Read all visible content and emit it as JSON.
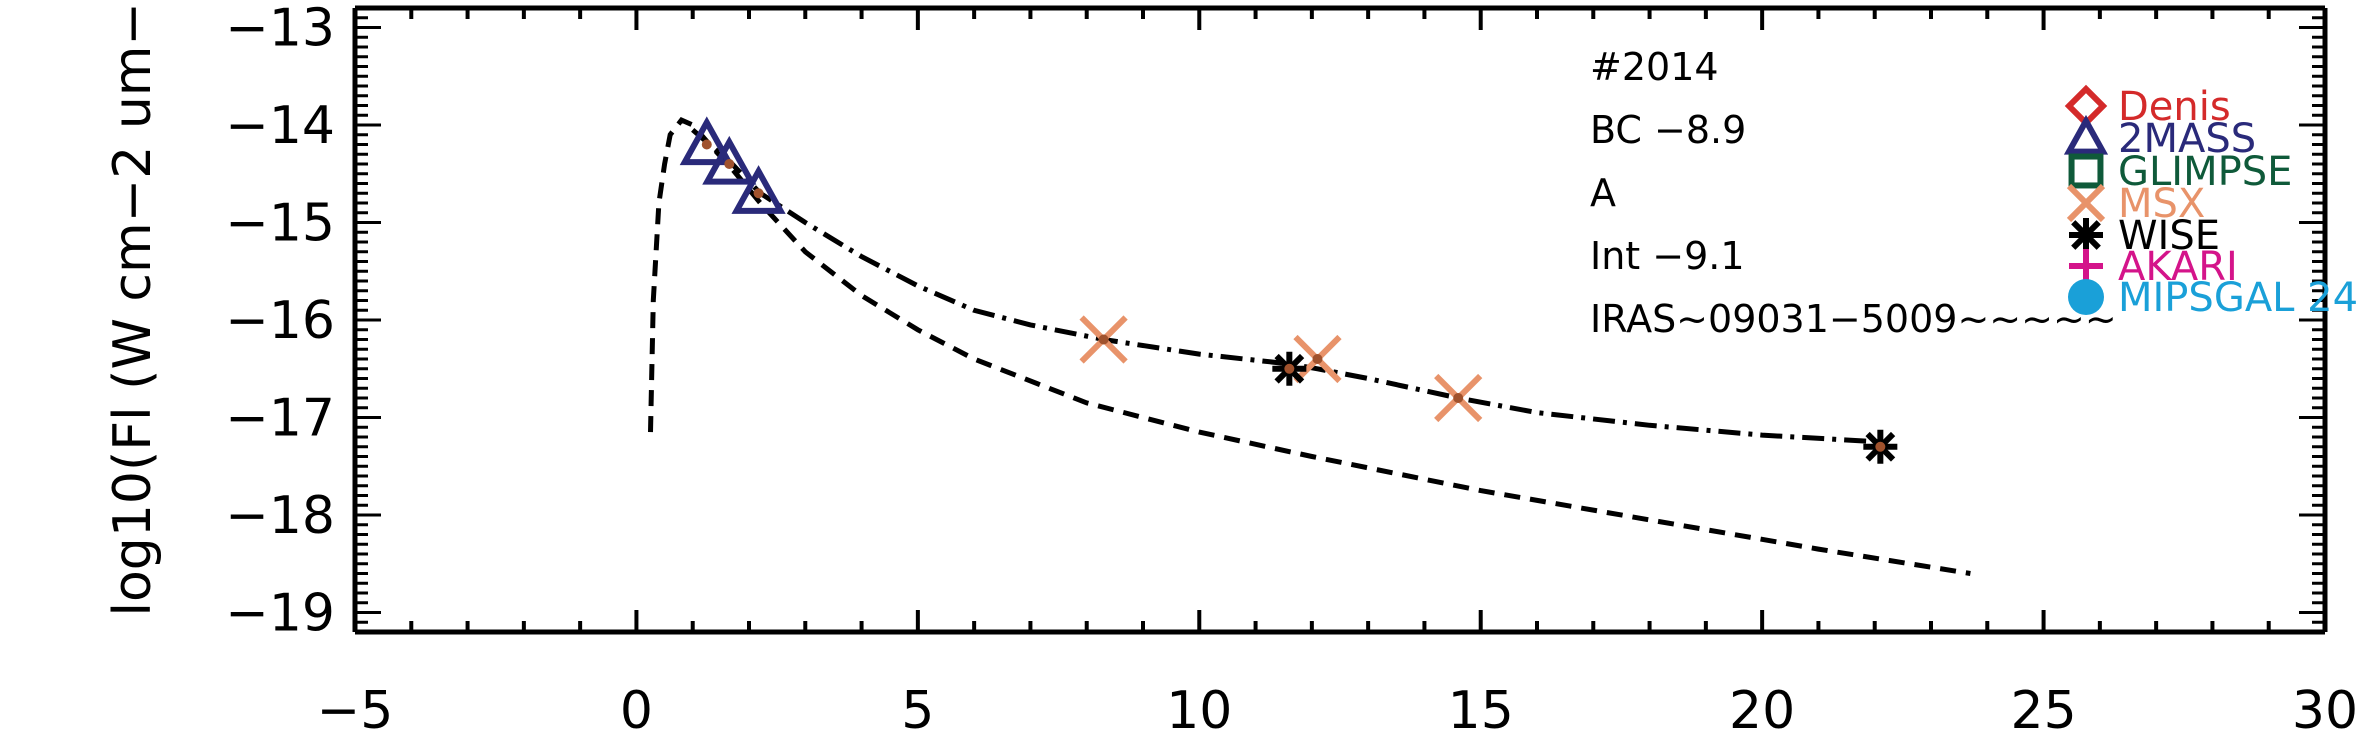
{
  "chart_data": {
    "type": "scatter",
    "ylabel": "log10(Fl (W cm−2 um−",
    "xlim": [
      -5,
      30
    ],
    "ylim": [
      -19.2,
      -12.8
    ],
    "xticks": [
      -5,
      0,
      5,
      10,
      15,
      20,
      25,
      30
    ],
    "xtick_labels": [
      "−5",
      "0",
      "5",
      "10",
      "15",
      "20",
      "25",
      "30"
    ],
    "yticks": [
      -13,
      -14,
      -15,
      -16,
      -17,
      -18,
      -19
    ],
    "ytick_labels": [
      "−13",
      "−14",
      "−15",
      "−16",
      "−17",
      "−18",
      "−19"
    ],
    "grid": false,
    "annotations": [
      "#2014",
      "BC −8.9",
      "A",
      "Int −9.1",
      "IRAS~09031−5009~~~~~"
    ],
    "legend": [
      {
        "name": "Denis",
        "marker": "diamond",
        "color": "#d42a2a"
      },
      {
        "name": "2MASS",
        "marker": "triangle",
        "color": "#2a2a7a"
      },
      {
        "name": "GLIMPSE",
        "marker": "square",
        "color": "#0f5a3a"
      },
      {
        "name": "MSX",
        "marker": "x",
        "color": "#e8936a"
      },
      {
        "name": "WISE",
        "marker": "asterisk",
        "color": "#000000"
      },
      {
        "name": "AKARI",
        "marker": "plus",
        "color": "#d4148a"
      },
      {
        "name": "MIPSGAL 24",
        "marker": "circle",
        "color": "#1aa0d8"
      }
    ],
    "points": [
      {
        "instrument": "2MASS",
        "x": 1.25,
        "y": -14.2
      },
      {
        "instrument": "2MASS",
        "x": 1.65,
        "y": -14.4
      },
      {
        "instrument": "2MASS",
        "x": 2.17,
        "y": -14.7
      },
      {
        "instrument": "MSX",
        "x": 8.3,
        "y": -16.2
      },
      {
        "instrument": "MSX",
        "x": 12.1,
        "y": -16.4
      },
      {
        "instrument": "MSX",
        "x": 14.6,
        "y": -16.8
      },
      {
        "instrument": "WISE",
        "x": 11.6,
        "y": -16.5
      },
      {
        "instrument": "WISE",
        "x": 22.1,
        "y": -17.3
      }
    ],
    "curves": [
      {
        "style": "dashed",
        "x": [
          0.25,
          0.3,
          0.4,
          0.5,
          0.6,
          0.8,
          1.0,
          1.3,
          1.7,
          2.2,
          3,
          4,
          5,
          6,
          8,
          10,
          12,
          15,
          18,
          21,
          23.7
        ],
        "y": [
          -17.15,
          -15.8,
          -14.8,
          -14.4,
          -14.1,
          -13.95,
          -14.0,
          -14.2,
          -14.45,
          -14.8,
          -15.3,
          -15.75,
          -16.1,
          -16.4,
          -16.85,
          -17.15,
          -17.4,
          -17.75,
          -18.05,
          -18.35,
          -18.6
        ]
      },
      {
        "style": "dash-dot",
        "x": [
          1.0,
          1.3,
          1.7,
          2.2,
          3,
          4,
          5,
          6,
          7,
          8.3,
          10,
          11.6,
          12.1,
          13,
          14.6,
          16,
          18,
          20,
          22.1
        ],
        "y": [
          -14.05,
          -14.2,
          -14.4,
          -14.7,
          -15.0,
          -15.35,
          -15.65,
          -15.9,
          -16.05,
          -16.2,
          -16.35,
          -16.45,
          -16.5,
          -16.6,
          -16.8,
          -16.95,
          -17.08,
          -17.18,
          -17.25
        ]
      }
    ]
  }
}
